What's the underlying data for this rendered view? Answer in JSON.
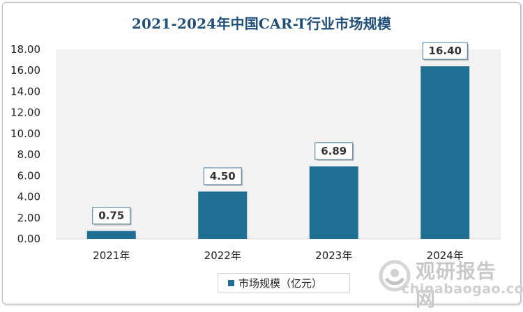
{
  "chart_data": {
    "type": "bar",
    "title": "2021-2024年中国CAR-T行业市场规模",
    "categories": [
      "2021年",
      "2022年",
      "2023年",
      "2024年"
    ],
    "series": [
      {
        "name": "市场规模（亿元）",
        "values": [
          0.75,
          4.5,
          6.89,
          16.4
        ],
        "labels": [
          "0.75",
          "4.50",
          "6.89",
          "16.40"
        ]
      }
    ],
    "ylim": [
      0,
      18
    ],
    "yticks": [
      "0.00",
      "2.00",
      "4.00",
      "6.00",
      "8.00",
      "10.00",
      "12.00",
      "14.00",
      "16.00",
      "18.00"
    ],
    "legend": "bottom",
    "bar_color": "#1f6f93",
    "plot_background": "#f2f2f2"
  },
  "watermark": {
    "text_cn": "观研报告网",
    "text_en": "chinabaogao.com"
  }
}
